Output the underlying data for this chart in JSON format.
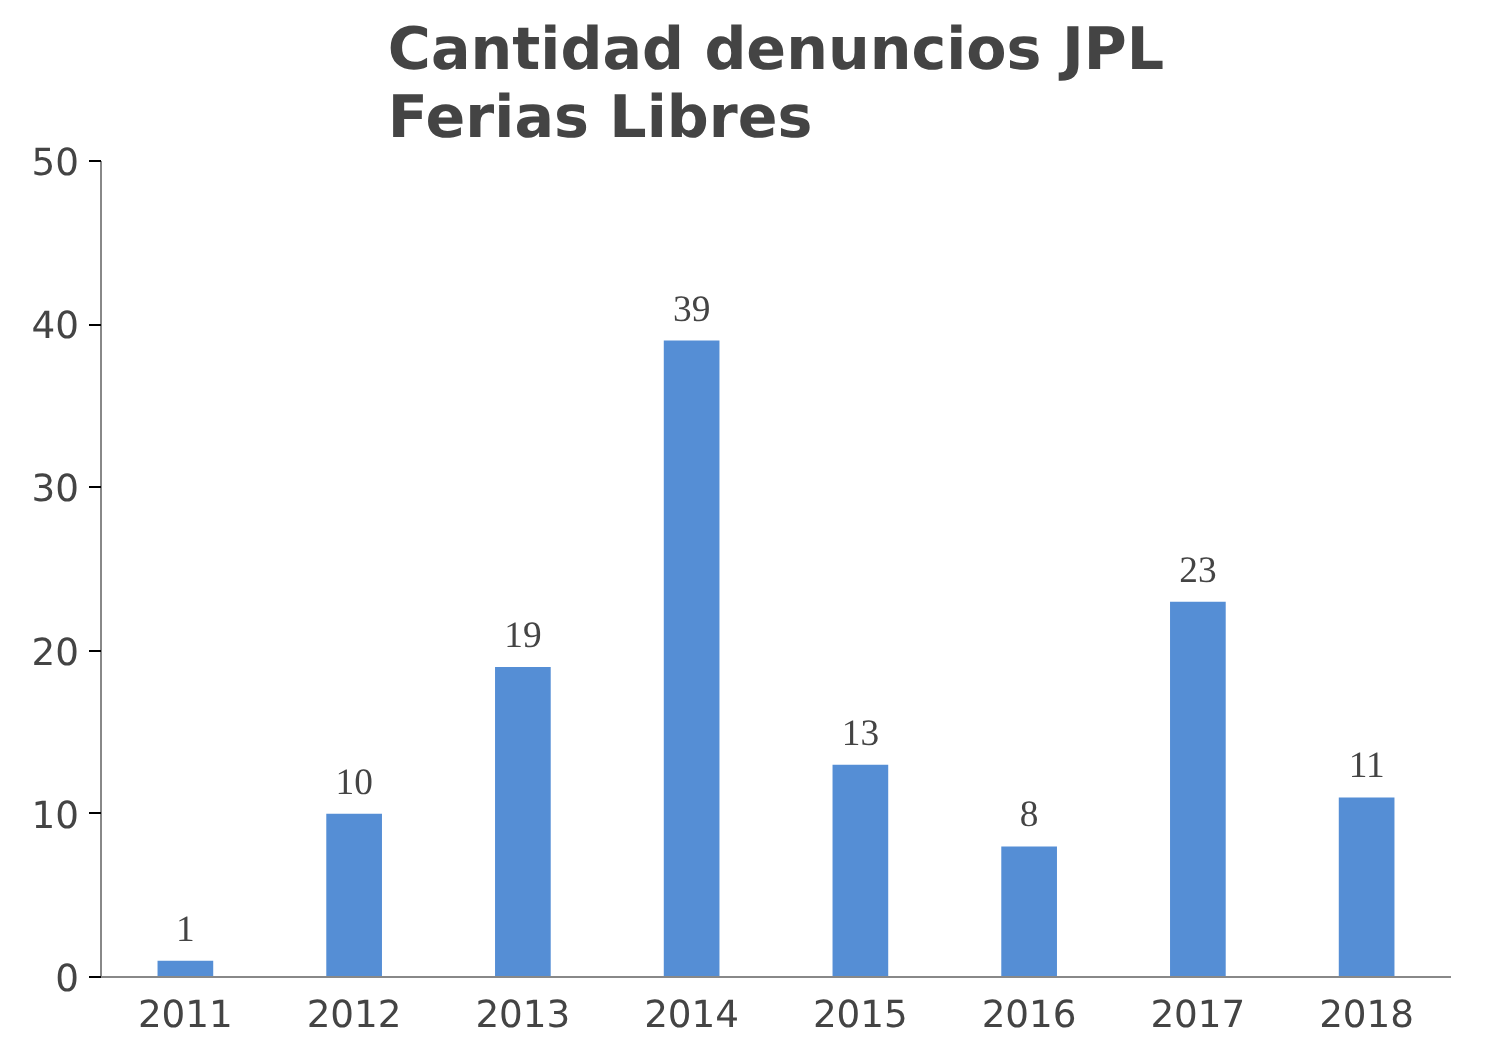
{
  "chart_data": {
    "type": "bar",
    "title": "Cantidad denuncios JPL\nFerias Libres",
    "categories": [
      "2011",
      "2012",
      "2013",
      "2014",
      "2015",
      "2016",
      "2017",
      "2018"
    ],
    "values": [
      1,
      10,
      19,
      39,
      13,
      8,
      23,
      11
    ],
    "color": "#558ed5",
    "ylim": [
      0,
      50
    ],
    "yticks": [
      0,
      10,
      20,
      30,
      40,
      50
    ],
    "grid": false,
    "data_labels": true
  }
}
